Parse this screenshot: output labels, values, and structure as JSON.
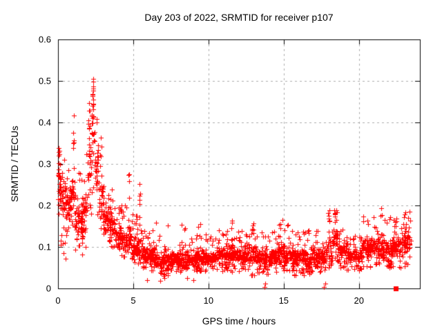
{
  "window": {
    "background": "#ffffff"
  },
  "chart_data": {
    "type": "scatter",
    "title": "Day 203 of 2022, SRMTID for receiver p107",
    "xlabel": "GPS time / hours",
    "ylabel": "SRMTID / TECUs",
    "xlim": [
      0,
      24.05
    ],
    "ylim": [
      0,
      0.6
    ],
    "xticks": [
      {
        "v": 0,
        "label": "0"
      },
      {
        "v": 5,
        "label": "5"
      },
      {
        "v": 10,
        "label": "10"
      },
      {
        "v": 15,
        "label": "15"
      },
      {
        "v": 20,
        "label": "20"
      }
    ],
    "yticks": [
      {
        "v": 0,
        "label": "0"
      },
      {
        "v": 0.1,
        "label": "0.1"
      },
      {
        "v": 0.2,
        "label": "0.2"
      },
      {
        "v": 0.3,
        "label": "0.3"
      },
      {
        "v": 0.4,
        "label": "0.4"
      },
      {
        "v": 0.5,
        "label": "0.5"
      },
      {
        "v": 0.6,
        "label": "0.6"
      }
    ],
    "grid": {
      "on": true,
      "color": "#ababab",
      "dash": [
        3,
        4
      ]
    },
    "axis_color": "#000000",
    "legend": "none",
    "series": [
      {
        "name": "SRMTID",
        "marker": "plus",
        "color": "#ff0000",
        "marker_size": 7,
        "seed": 2022203,
        "envelope_bins": [
          [
            0.0,
            0.15,
            25,
            0.16,
            0.36,
            0.27,
            0.2
          ],
          [
            0.15,
            0.5,
            45,
            0.1,
            0.33,
            0.22,
            0.12
          ],
          [
            0.5,
            0.9,
            50,
            0.12,
            0.3,
            0.21,
            0.12
          ],
          [
            0.9,
            1.15,
            30,
            0.13,
            0.42,
            0.24,
            0.3
          ],
          [
            1.15,
            1.6,
            50,
            0.08,
            0.28,
            0.16,
            0.12
          ],
          [
            1.6,
            1.95,
            40,
            0.1,
            0.33,
            0.19,
            0.15
          ],
          [
            1.95,
            2.2,
            35,
            0.18,
            0.47,
            0.3,
            0.35
          ],
          [
            2.2,
            2.45,
            35,
            0.22,
            0.505,
            0.36,
            0.4
          ],
          [
            2.45,
            2.7,
            30,
            0.16,
            0.42,
            0.29,
            0.3
          ],
          [
            2.7,
            3.0,
            35,
            0.14,
            0.37,
            0.23,
            0.25
          ],
          [
            3.0,
            3.4,
            45,
            0.12,
            0.3,
            0.18,
            0.15
          ],
          [
            3.4,
            3.8,
            45,
            0.1,
            0.25,
            0.15,
            0.12
          ],
          [
            3.8,
            4.2,
            45,
            0.08,
            0.2,
            0.13,
            0.12
          ],
          [
            4.2,
            4.55,
            40,
            0.07,
            0.22,
            0.12,
            0.15
          ],
          [
            4.55,
            4.85,
            35,
            0.07,
            0.28,
            0.12,
            0.2
          ],
          [
            4.85,
            5.3,
            50,
            0.06,
            0.18,
            0.1,
            0.12
          ],
          [
            5.3,
            5.6,
            35,
            0.06,
            0.26,
            0.1,
            0.2
          ],
          [
            5.6,
            6.2,
            65,
            0.04,
            0.15,
            0.085,
            0.12
          ],
          [
            6.2,
            6.5,
            35,
            0.04,
            0.18,
            0.08,
            0.15
          ],
          [
            6.5,
            7.0,
            55,
            0.02,
            0.13,
            0.065,
            0.12
          ],
          [
            7.0,
            7.5,
            55,
            0.03,
            0.17,
            0.07,
            0.12
          ],
          [
            7.5,
            8.1,
            65,
            0.04,
            0.13,
            0.07,
            0.12
          ],
          [
            8.1,
            8.5,
            45,
            0.04,
            0.16,
            0.075,
            0.15
          ],
          [
            8.5,
            9.2,
            75,
            0.04,
            0.13,
            0.07,
            0.12
          ],
          [
            9.2,
            9.6,
            45,
            0.04,
            0.16,
            0.075,
            0.15
          ],
          [
            9.6,
            10.5,
            95,
            0.04,
            0.13,
            0.075,
            0.12
          ],
          [
            10.5,
            11.3,
            85,
            0.04,
            0.14,
            0.08,
            0.12
          ],
          [
            11.3,
            11.7,
            45,
            0.04,
            0.175,
            0.085,
            0.2
          ],
          [
            11.7,
            12.6,
            95,
            0.04,
            0.14,
            0.08,
            0.12
          ],
          [
            12.6,
            13.2,
            65,
            0.03,
            0.17,
            0.08,
            0.15
          ],
          [
            13.2,
            14.0,
            85,
            0.03,
            0.14,
            0.075,
            0.12
          ],
          [
            14.0,
            14.6,
            65,
            0.04,
            0.14,
            0.08,
            0.12
          ],
          [
            14.6,
            15.0,
            45,
            0.04,
            0.17,
            0.085,
            0.18
          ],
          [
            15.0,
            15.7,
            75,
            0.04,
            0.16,
            0.08,
            0.12
          ],
          [
            15.7,
            16.5,
            85,
            0.03,
            0.14,
            0.075,
            0.12
          ],
          [
            16.5,
            17.1,
            65,
            0.03,
            0.14,
            0.07,
            0.12
          ],
          [
            17.1,
            17.8,
            75,
            0.04,
            0.14,
            0.075,
            0.12
          ],
          [
            17.8,
            18.2,
            45,
            0.05,
            0.19,
            0.09,
            0.2
          ],
          [
            18.2,
            18.7,
            50,
            0.06,
            0.19,
            0.115,
            0.25
          ],
          [
            18.7,
            19.3,
            65,
            0.04,
            0.15,
            0.09,
            0.12
          ],
          [
            19.3,
            20.2,
            95,
            0.04,
            0.13,
            0.08,
            0.12
          ],
          [
            20.2,
            20.75,
            55,
            0.05,
            0.18,
            0.1,
            0.15
          ],
          [
            20.75,
            21.55,
            75,
            0.05,
            0.2,
            0.1,
            0.15
          ],
          [
            21.55,
            22.15,
            65,
            0.04,
            0.2,
            0.09,
            0.15
          ],
          [
            22.15,
            22.85,
            75,
            0.05,
            0.17,
            0.1,
            0.15
          ],
          [
            22.85,
            23.45,
            65,
            0.05,
            0.19,
            0.11,
            0.18
          ]
        ],
        "outlier_points": [
          [
            0.2,
            0.105
          ],
          [
            0.35,
            0.085
          ],
          [
            0.5,
            0.072
          ],
          [
            5.9,
            0.02
          ],
          [
            6.8,
            0.018
          ],
          [
            7.05,
            0.025
          ],
          [
            8.6,
            0.025
          ],
          [
            9.0,
            0.02
          ],
          [
            13.72,
            0.004
          ],
          [
            13.78,
            0.012
          ],
          [
            17.68,
            0.004
          ],
          [
            17.74,
            0.012
          ]
        ]
      }
    ],
    "special_points": [
      {
        "x": 22.45,
        "y": 0,
        "marker": "filled-square",
        "color": "#ff0000",
        "size": 7
      }
    ]
  }
}
